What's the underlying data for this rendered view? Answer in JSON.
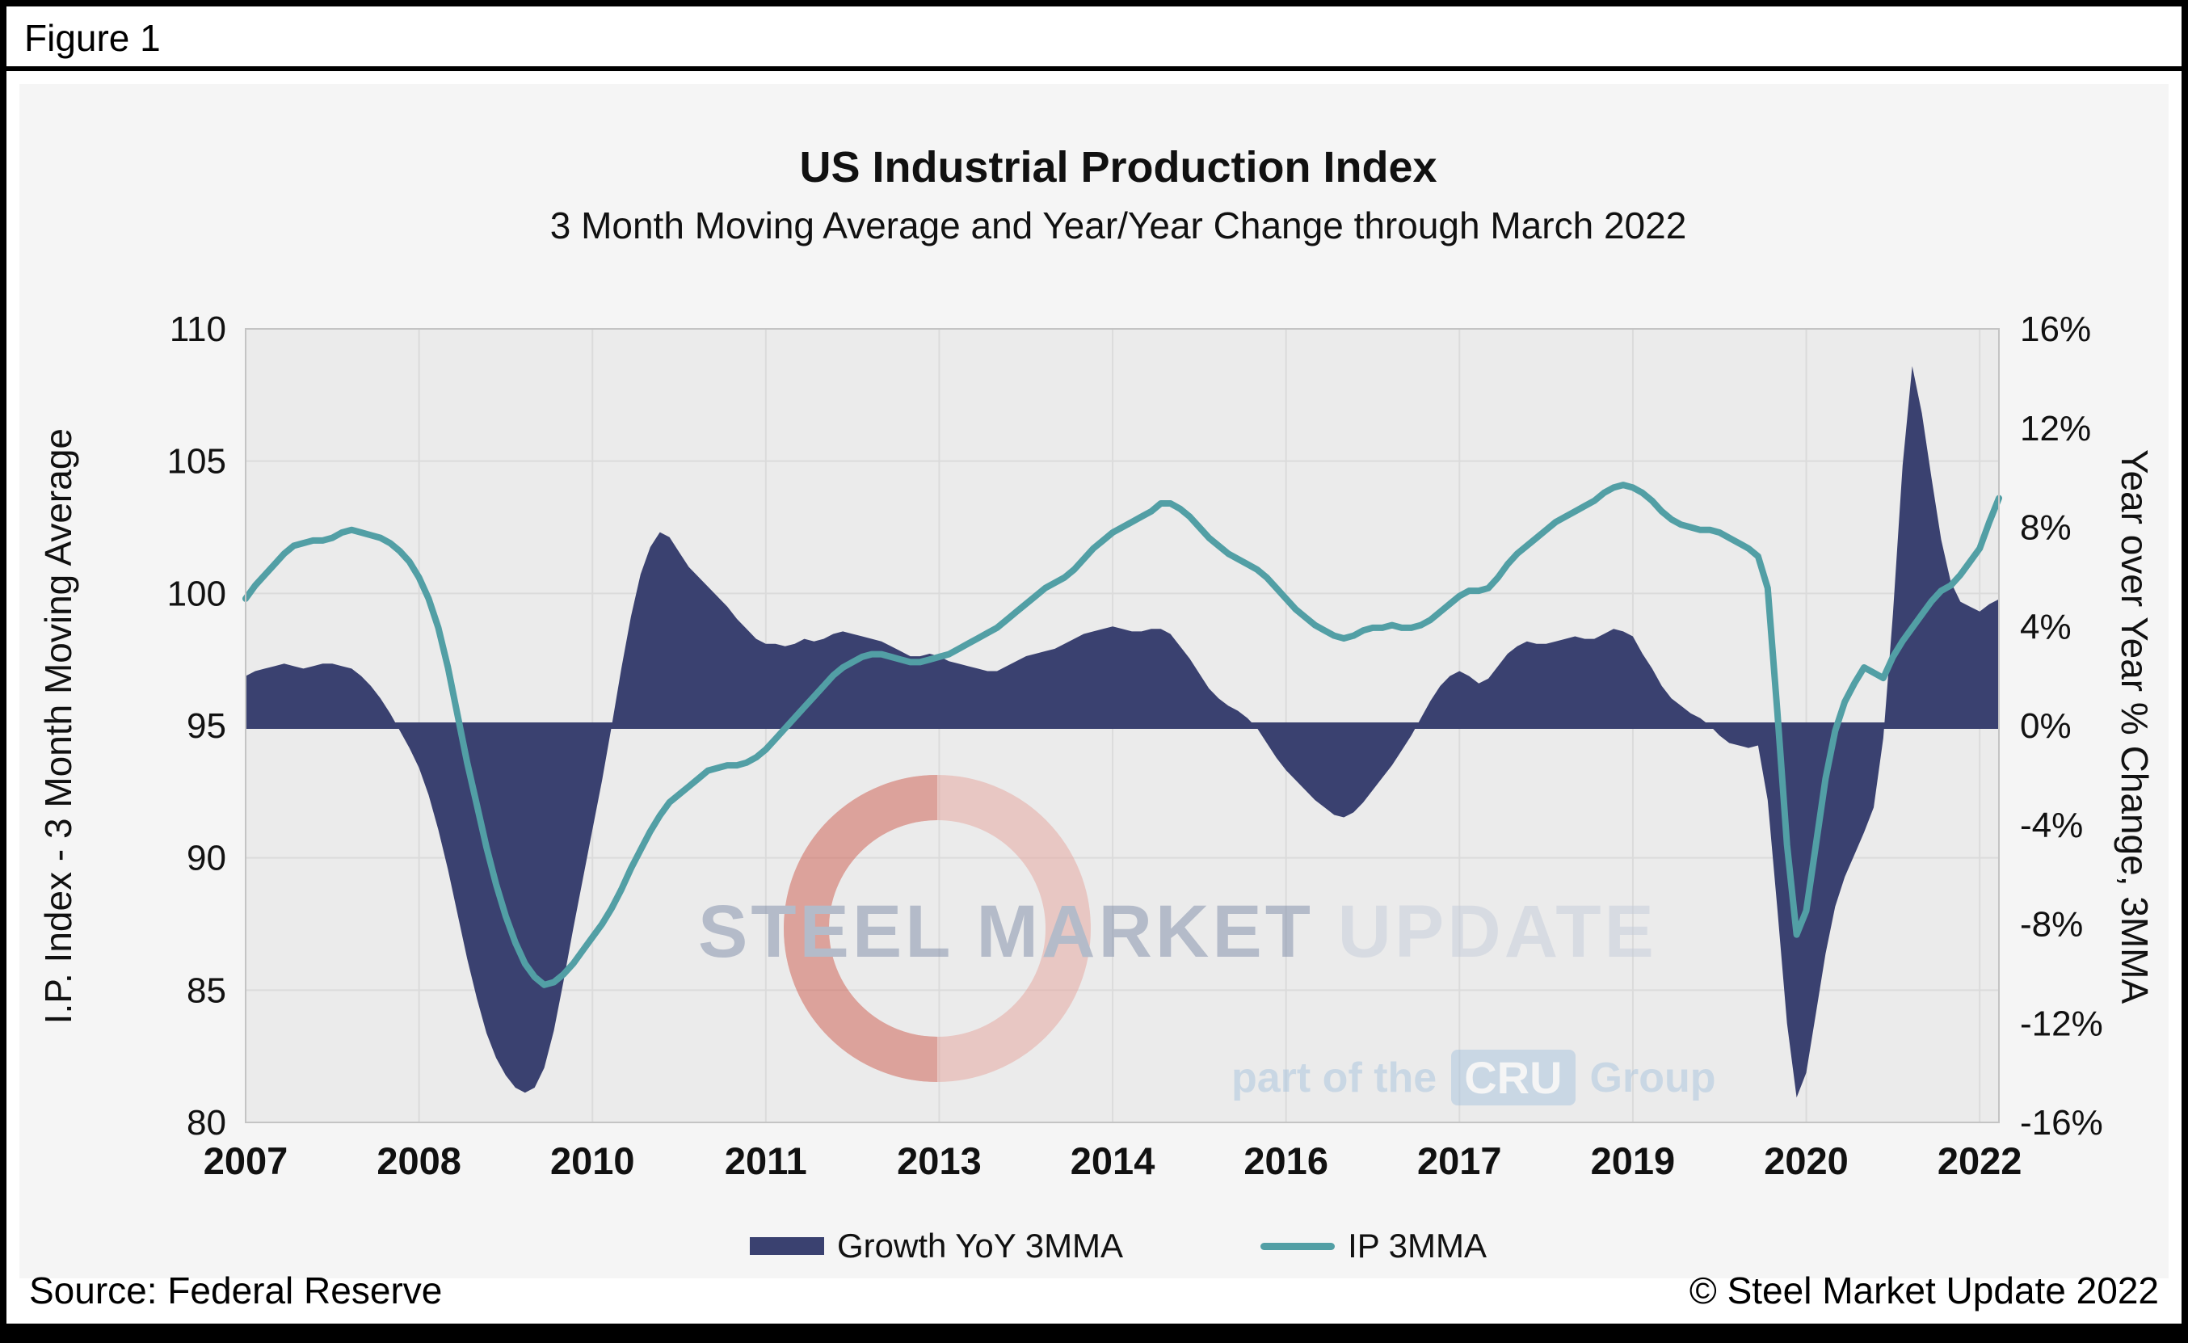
{
  "figure_label": "Figure 1",
  "title": "US Industrial Production Index",
  "subtitle": "3 Month Moving Average and Year/Year Change through March 2022",
  "left_axis_title": "I.P. Index - 3 Month Moving Average",
  "right_axis_title": "Year over Year % Change, 3MMA",
  "footer": {
    "source": "Source: Federal Reserve",
    "copyright": "© Steel Market Update 2022"
  },
  "watermark": {
    "title_dark": "STEEL MARKET",
    "title_light": " UPDATE",
    "tagline_pre": "part of the",
    "tagline_box": "CRU",
    "tagline_post": "Group"
  },
  "colors": {
    "navy": "#3A4170",
    "teal": "#529FA5",
    "plot_bg": "#EBEBEB",
    "grid": "#DBDBDB",
    "plot_border": "#C4C4C4",
    "panel_bg": "#F5F5F5",
    "watermark_salmon": "#E6A49C",
    "watermark_red": "#CE5B4D",
    "watermark_blue": "#A9C4DE"
  },
  "chart_data": {
    "type": "area+line",
    "title": "US Industrial Production Index",
    "subtitle": "3 Month Moving Average and Year/Year Change through March 2022",
    "x_unit": "month",
    "x_start": "2007-01",
    "x_end": "2022-03",
    "grid": true,
    "legend_position": "bottom",
    "x_ticks": [
      {
        "m": 0,
        "label": "2007"
      },
      {
        "m": 18,
        "label": "2008"
      },
      {
        "m": 36,
        "label": "2010"
      },
      {
        "m": 54,
        "label": "2011"
      },
      {
        "m": 72,
        "label": "2013"
      },
      {
        "m": 90,
        "label": "2014"
      },
      {
        "m": 108,
        "label": "2016"
      },
      {
        "m": 126,
        "label": "2017"
      },
      {
        "m": 144,
        "label": "2019"
      },
      {
        "m": 162,
        "label": "2020"
      },
      {
        "m": 180,
        "label": "2022"
      }
    ],
    "left_axis": {
      "title": "I.P. Index - 3 Month Moving Average",
      "min": 80,
      "max": 110,
      "ticks": [
        80,
        85,
        90,
        95,
        100,
        105,
        110
      ]
    },
    "right_axis": {
      "title": "Year over Year % Change, 3MMA",
      "min": -16,
      "max": 16,
      "ticks": [
        -16,
        -12,
        -8,
        -4,
        0,
        4,
        8,
        12,
        16
      ],
      "suffix": "%"
    },
    "series": [
      {
        "name": "Growth YoY 3MMA",
        "type": "area",
        "axis": "right",
        "color": "#3A4170",
        "values": [
          2.0,
          2.2,
          2.3,
          2.4,
          2.5,
          2.4,
          2.3,
          2.4,
          2.5,
          2.5,
          2.4,
          2.3,
          2.0,
          1.6,
          1.1,
          0.5,
          -0.2,
          -0.9,
          -1.7,
          -2.8,
          -4.2,
          -5.8,
          -7.6,
          -9.4,
          -11.0,
          -12.4,
          -13.4,
          -14.1,
          -14.6,
          -14.8,
          -14.6,
          -13.8,
          -12.3,
          -10.3,
          -8.2,
          -6.2,
          -4.2,
          -2.2,
          0.0,
          2.3,
          4.4,
          6.1,
          7.2,
          7.8,
          7.6,
          7.0,
          6.4,
          6.0,
          5.6,
          5.2,
          4.8,
          4.3,
          3.9,
          3.5,
          3.3,
          3.3,
          3.2,
          3.3,
          3.5,
          3.4,
          3.5,
          3.7,
          3.8,
          3.7,
          3.6,
          3.5,
          3.4,
          3.2,
          3.0,
          2.8,
          2.8,
          2.9,
          2.8,
          2.6,
          2.5,
          2.4,
          2.3,
          2.2,
          2.2,
          2.4,
          2.6,
          2.8,
          2.9,
          3.0,
          3.1,
          3.3,
          3.5,
          3.7,
          3.8,
          3.9,
          4.0,
          3.9,
          3.8,
          3.8,
          3.9,
          3.9,
          3.7,
          3.2,
          2.7,
          2.1,
          1.5,
          1.1,
          0.8,
          0.6,
          0.3,
          -0.1,
          -0.7,
          -1.3,
          -1.8,
          -2.2,
          -2.6,
          -3.0,
          -3.3,
          -3.6,
          -3.7,
          -3.5,
          -3.1,
          -2.6,
          -2.1,
          -1.6,
          -1.0,
          -0.4,
          0.3,
          1.0,
          1.6,
          2.0,
          2.2,
          2.0,
          1.7,
          1.9,
          2.4,
          2.9,
          3.2,
          3.4,
          3.3,
          3.3,
          3.4,
          3.5,
          3.6,
          3.5,
          3.5,
          3.7,
          3.9,
          3.8,
          3.6,
          2.9,
          2.3,
          1.6,
          1.1,
          0.8,
          0.5,
          0.3,
          0.0,
          -0.4,
          -0.7,
          -0.8,
          -0.9,
          -0.8,
          -3.0,
          -7.4,
          -12.0,
          -15.0,
          -14.0,
          -11.6,
          -9.2,
          -7.3,
          -6.1,
          -5.2,
          -4.3,
          -3.3,
          -0.5,
          4.5,
          10.5,
          14.5,
          12.6,
          10.0,
          7.5,
          5.8,
          5.0,
          4.8,
          4.6,
          4.9,
          5.1
        ]
      },
      {
        "name": "IP 3MMA",
        "type": "line",
        "axis": "left",
        "color": "#529FA5",
        "values": [
          99.8,
          100.3,
          100.7,
          101.1,
          101.5,
          101.8,
          101.9,
          102.0,
          102.0,
          102.1,
          102.3,
          102.4,
          102.3,
          102.2,
          102.1,
          101.9,
          101.6,
          101.2,
          100.6,
          99.8,
          98.7,
          97.2,
          95.4,
          93.6,
          92.0,
          90.4,
          89.0,
          87.8,
          86.8,
          86.0,
          85.5,
          85.2,
          85.3,
          85.6,
          86.0,
          86.5,
          87.0,
          87.5,
          88.1,
          88.8,
          89.6,
          90.3,
          91.0,
          91.6,
          92.1,
          92.4,
          92.7,
          93.0,
          93.3,
          93.4,
          93.5,
          93.5,
          93.6,
          93.8,
          94.1,
          94.5,
          94.9,
          95.3,
          95.7,
          96.1,
          96.5,
          96.9,
          97.2,
          97.4,
          97.6,
          97.7,
          97.7,
          97.6,
          97.5,
          97.4,
          97.4,
          97.5,
          97.6,
          97.7,
          97.9,
          98.1,
          98.3,
          98.5,
          98.7,
          99.0,
          99.3,
          99.6,
          99.9,
          100.2,
          100.4,
          100.6,
          100.9,
          101.3,
          101.7,
          102.0,
          102.3,
          102.5,
          102.7,
          102.9,
          103.1,
          103.4,
          103.4,
          103.2,
          102.9,
          102.5,
          102.1,
          101.8,
          101.5,
          101.3,
          101.1,
          100.9,
          100.6,
          100.2,
          99.8,
          99.4,
          99.1,
          98.8,
          98.6,
          98.4,
          98.3,
          98.4,
          98.6,
          98.7,
          98.7,
          98.8,
          98.7,
          98.7,
          98.8,
          99.0,
          99.3,
          99.6,
          99.9,
          100.1,
          100.1,
          100.2,
          100.6,
          101.1,
          101.5,
          101.8,
          102.1,
          102.4,
          102.7,
          102.9,
          103.1,
          103.3,
          103.5,
          103.8,
          104.0,
          104.1,
          104.0,
          103.8,
          103.5,
          103.1,
          102.8,
          102.6,
          102.5,
          102.4,
          102.4,
          102.3,
          102.1,
          101.9,
          101.7,
          101.4,
          100.2,
          95.5,
          90.5,
          87.1,
          88.0,
          90.5,
          93.0,
          94.8,
          95.9,
          96.6,
          97.2,
          97.0,
          96.8,
          97.6,
          98.2,
          98.7,
          99.2,
          99.7,
          100.1,
          100.3,
          100.7,
          101.2,
          101.7,
          102.7,
          103.6
        ]
      }
    ]
  }
}
